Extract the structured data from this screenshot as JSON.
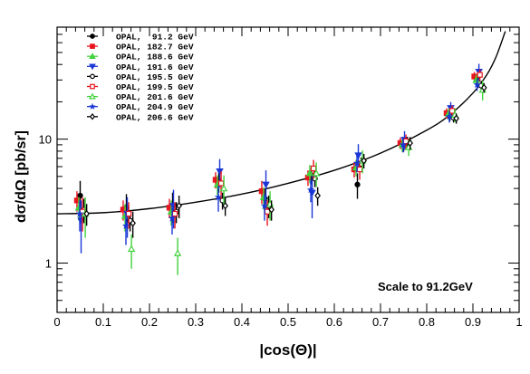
{
  "chart_data": {
    "type": "scatter",
    "xlabel": "|cos(Θ)|",
    "ylabel": "dσ/dΩ [pb/sr]",
    "xlim": [
      0,
      1
    ],
    "ylim": [
      0.4,
      80
    ],
    "yscale": "log",
    "x_ticks": [
      "0",
      "0.1",
      "0.2",
      "0.3",
      "0.4",
      "0.5",
      "0.6",
      "0.7",
      "0.8",
      "0.9",
      "1"
    ],
    "y_ticks": [
      "1",
      "10"
    ],
    "annotation": "Scale to 91.2GeV",
    "legend_position": "top-left",
    "grid": false,
    "curve": {
      "x": [
        0,
        0.1,
        0.2,
        0.3,
        0.4,
        0.5,
        0.6,
        0.7,
        0.8,
        0.85,
        0.9,
        0.93,
        0.95,
        0.97
      ],
      "y": [
        2.5,
        2.55,
        2.75,
        3.1,
        3.6,
        4.4,
        5.6,
        7.7,
        11.8,
        15.7,
        23.5,
        33,
        46,
        74
      ]
    },
    "series": [
      {
        "name": "OPAL,  91.2 GeV",
        "color": "#000000",
        "marker": "filled-circle",
        "x": [
          0.05,
          0.15,
          0.25,
          0.35,
          0.45,
          0.55,
          0.65,
          0.75,
          0.85,
          0.91
        ],
        "y": [
          3.5,
          2.8,
          2.9,
          4.6,
          3.3,
          5.1,
          4.3,
          9.1,
          15.5,
          30.0
        ],
        "err": [
          1.1,
          0.8,
          0.8,
          0.9,
          0.7,
          0.8,
          1.0,
          1.2,
          1.6,
          2.8
        ]
      },
      {
        "name": "OPAL, 182.7 GeV",
        "color": "#e8141e",
        "marker": "filled-square",
        "x": [
          0.043,
          0.143,
          0.243,
          0.343,
          0.443,
          0.543,
          0.643,
          0.743,
          0.843,
          0.903
        ],
        "y": [
          3.2,
          2.7,
          2.8,
          4.7,
          3.8,
          4.9,
          5.7,
          9.3,
          16.2,
          32.0
        ],
        "err": [
          0.6,
          0.5,
          0.5,
          0.7,
          0.8,
          0.7,
          0.8,
          1.0,
          1.5,
          2.8
        ]
      },
      {
        "name": "OPAL, 188.6 GeV",
        "color": "#43d13d",
        "marker": "filled-triangle-up",
        "x": [
          0.047,
          0.147,
          0.247,
          0.347,
          0.447,
          0.547,
          0.647,
          0.747,
          0.847,
          0.907
        ],
        "y": [
          2.8,
          2.4,
          2.6,
          4.3,
          3.4,
          5.3,
          5.9,
          9.0,
          16.0,
          30.0
        ],
        "err": [
          0.6,
          0.6,
          0.6,
          0.8,
          0.7,
          0.9,
          0.9,
          1.1,
          1.6,
          3.0
        ]
      },
      {
        "name": "OPAL, 191.6 GeV",
        "color": "#1a36d6",
        "marker": "filled-triangle-down",
        "x": [
          0.052,
          0.152,
          0.252,
          0.352,
          0.452,
          0.552,
          0.652,
          0.752,
          0.852,
          0.913
        ],
        "y": [
          2.2,
          2.5,
          2.9,
          5.5,
          4.3,
          3.7,
          7.4,
          9.9,
          17.8,
          35.0
        ],
        "err": [
          1.0,
          0.9,
          1.0,
          1.4,
          1.3,
          1.4,
          1.7,
          1.7,
          2.1,
          5.5
        ]
      },
      {
        "name": "OPAL, 195.5 GeV",
        "color": "#000000",
        "marker": "open-circle",
        "x": [
          0.058,
          0.158,
          0.258,
          0.358,
          0.458,
          0.558,
          0.658,
          0.758,
          0.858,
          0.918
        ],
        "y": [
          2.7,
          2.2,
          2.6,
          3.2,
          2.9,
          4.8,
          6.3,
          9.4,
          14.9,
          27.0
        ],
        "err": [
          0.6,
          0.4,
          0.5,
          0.5,
          0.6,
          0.7,
          0.8,
          1.0,
          1.3,
          2.5
        ]
      },
      {
        "name": "OPAL, 199.5 GeV",
        "color": "#e8141e",
        "marker": "open-square",
        "x": [
          0.055,
          0.155,
          0.255,
          0.355,
          0.455,
          0.555,
          0.655,
          0.755,
          0.855,
          0.915
        ],
        "y": [
          2.6,
          2.5,
          2.5,
          4.4,
          2.6,
          5.8,
          5.7,
          9.6,
          16.9,
          33.0
        ],
        "err": [
          0.8,
          0.6,
          0.6,
          1.1,
          0.6,
          1.0,
          1.0,
          1.3,
          1.8,
          3.5
        ]
      },
      {
        "name": "OPAL, 201.6 GeV",
        "color": "#43d13d",
        "marker": "open-triangle-up",
        "x": [
          0.061,
          0.161,
          0.261,
          0.361,
          0.461,
          0.561,
          0.661,
          0.761,
          0.861,
          0.921
        ],
        "y": [
          2.5,
          1.3,
          1.2,
          4.0,
          3.0,
          5.3,
          6.7,
          8.6,
          15.7,
          25.0
        ],
        "err": [
          0.9,
          0.4,
          0.4,
          1.1,
          0.8,
          1.2,
          1.4,
          1.3,
          2.0,
          4.5
        ]
      },
      {
        "name": "OPAL, 204.9 GeV",
        "color": "#1a36d6",
        "marker": "star",
        "x": [
          0.049,
          0.149,
          0.249,
          0.349,
          0.449,
          0.549,
          0.649,
          0.749,
          0.849,
          0.909
        ],
        "y": [
          2.5,
          2.0,
          2.3,
          3.4,
          2.9,
          3.9,
          6.4,
          9.0,
          15.2,
          27.5
        ],
        "err": [
          0.7,
          0.6,
          0.6,
          0.8,
          0.7,
          0.8,
          1.0,
          1.2,
          1.6,
          3.0
        ]
      },
      {
        "name": "OPAL, 206.6 GeV",
        "color": "#000000",
        "marker": "open-diamond",
        "x": [
          0.064,
          0.164,
          0.264,
          0.364,
          0.464,
          0.564,
          0.664,
          0.764,
          0.864,
          0.924
        ],
        "y": [
          2.5,
          2.1,
          2.9,
          2.9,
          2.7,
          3.5,
          6.7,
          9.3,
          14.7,
          26.0
        ],
        "err": [
          0.5,
          0.5,
          0.6,
          0.5,
          0.5,
          0.6,
          0.9,
          1.1,
          1.4,
          2.3
        ]
      }
    ]
  }
}
